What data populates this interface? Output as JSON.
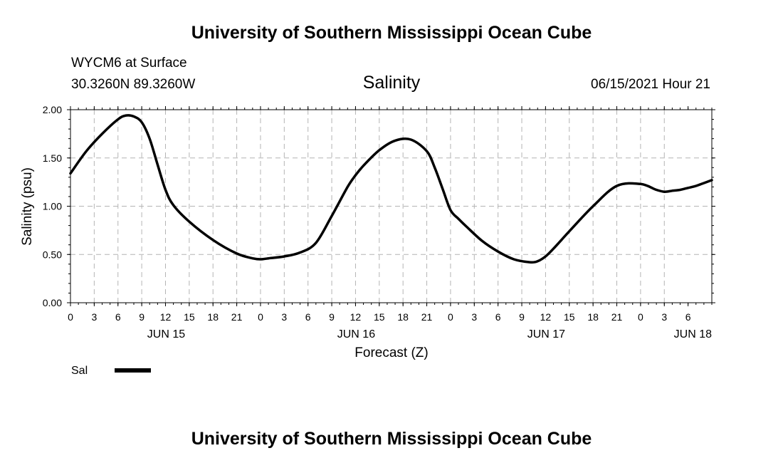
{
  "header": {
    "title": "University of Southern Mississippi Ocean Cube",
    "station": "WYCM6 at Surface",
    "coords": "30.3260N  89.3260W",
    "datetime": "06/15/2021 Hour 21"
  },
  "footer": {
    "title": "University of Southern Mississippi Ocean Cube"
  },
  "chart_data": {
    "type": "line",
    "title": "Salinity",
    "xlabel": "Forecast (Z)",
    "ylabel": "Salinity (psu)",
    "ylim": [
      0,
      2
    ],
    "xlim_hours": [
      0,
      81
    ],
    "yticks": [
      "0.00",
      "0.50",
      "1.00",
      "1.50",
      "2.00"
    ],
    "xticks": [
      "0",
      "3",
      "6",
      "9",
      "12",
      "15",
      "18",
      "21",
      "0",
      "3",
      "6",
      "9",
      "12",
      "15",
      "18",
      "21",
      "0",
      "3",
      "6",
      "9",
      "12",
      "15",
      "18",
      "21",
      "0",
      "3",
      "6"
    ],
    "day_labels": [
      "JUN 15",
      "JUN 16",
      "JUN 17",
      "JUN 18"
    ],
    "grid": true,
    "legend_position": "bottom-left",
    "series": [
      {
        "name": "Sal",
        "color": "#000000",
        "x_hours": [
          0,
          2,
          4,
          6,
          7,
          8,
          9,
          10,
          11,
          12,
          13,
          15,
          18,
          21,
          23,
          24,
          25,
          27,
          29,
          31,
          33,
          35,
          36,
          37,
          39,
          41,
          43,
          45,
          46,
          47,
          48,
          49,
          50,
          52,
          54,
          56,
          58,
          59,
          60,
          61,
          62,
          63,
          66,
          69,
          72,
          74,
          75,
          76,
          77,
          78,
          79,
          80,
          81
        ],
        "values": [
          1.34,
          1.57,
          1.75,
          1.9,
          1.94,
          1.93,
          1.87,
          1.7,
          1.43,
          1.17,
          1.01,
          0.84,
          0.65,
          0.51,
          0.46,
          0.45,
          0.46,
          0.48,
          0.52,
          0.62,
          0.9,
          1.2,
          1.32,
          1.42,
          1.58,
          1.68,
          1.69,
          1.57,
          1.4,
          1.18,
          0.96,
          0.87,
          0.79,
          0.64,
          0.53,
          0.45,
          0.42,
          0.43,
          0.48,
          0.56,
          0.65,
          0.74,
          1.0,
          1.21,
          1.23,
          1.17,
          1.15,
          1.16,
          1.17,
          1.19,
          1.21,
          1.24,
          1.27
        ]
      }
    ]
  }
}
